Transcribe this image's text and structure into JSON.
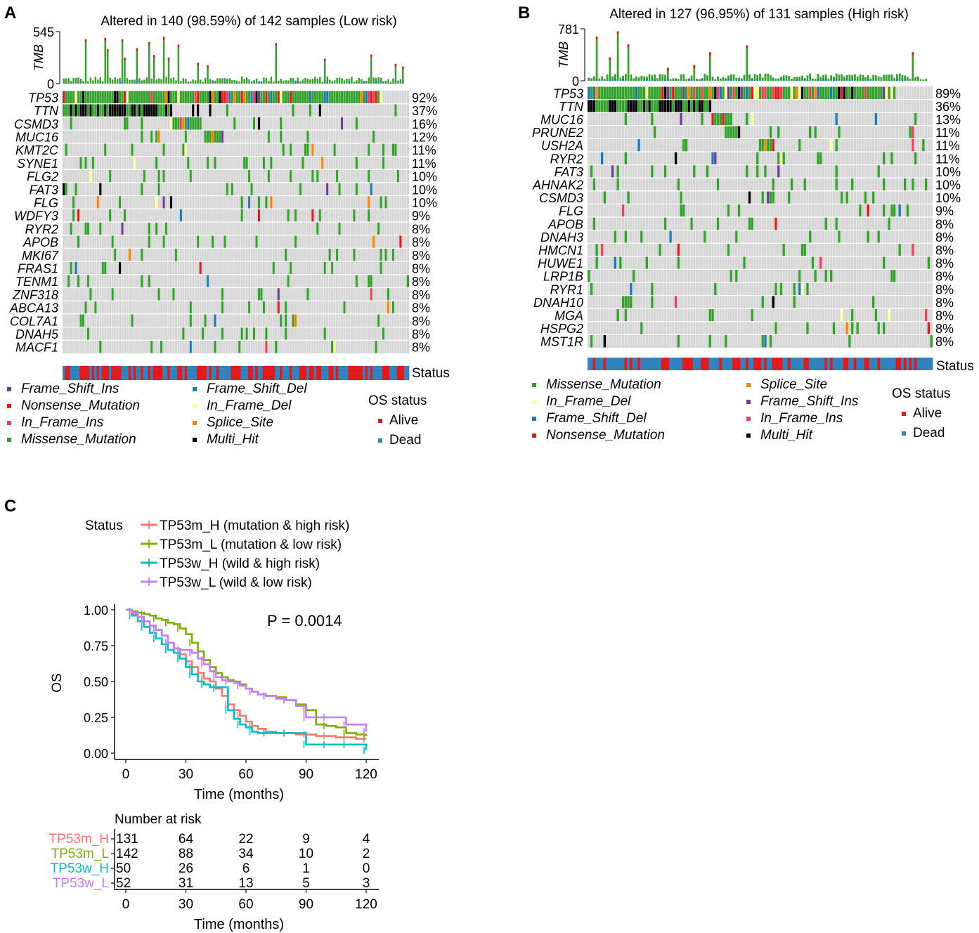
{
  "chart_data": [
    {
      "panel": "A",
      "type": "oncoplot",
      "title": "Altered in 140 (98.59%) of 142 samples (Low risk)",
      "tmb_axis_label": "TMB",
      "tmb_max": 545,
      "tmb_min": 0,
      "n_samples": 142,
      "genes": [
        "TP53",
        "TTN",
        "CSMD3",
        "MUC16",
        "KMT2C",
        "SYNE1",
        "FLG2",
        "FAT3",
        "FLG",
        "WDFY3",
        "RYR2",
        "APOB",
        "MKI67",
        "FRAS1",
        "TENM1",
        "ZNF318",
        "ABCA13",
        "COL7A1",
        "DNAH5",
        "MACF1"
      ],
      "percentages": [
        "92%",
        "37%",
        "16%",
        "12%",
        "11%",
        "11%",
        "10%",
        "10%",
        "10%",
        "9%",
        "8%",
        "8%",
        "8%",
        "8%",
        "8%",
        "8%",
        "8%",
        "8%",
        "8%",
        "8%"
      ],
      "status_label": "Status",
      "legend": {
        "variants": [
          {
            "label": "Frame_Shift_Ins",
            "color": "#6a3d9a"
          },
          {
            "label": "Nonsense_Mutation",
            "color": "#e31a1c"
          },
          {
            "label": "In_Frame_Ins",
            "color": "#e9435a"
          },
          {
            "label": "Missense_Mutation",
            "color": "#33a02c"
          },
          {
            "label": "Frame_Shift_Del",
            "color": "#1f78b4"
          },
          {
            "label": "In_Frame_Del",
            "color": "#ffff99"
          },
          {
            "label": "Splice_Site",
            "color": "#ff7f00"
          },
          {
            "label": "Multi_Hit",
            "color": "#000000"
          }
        ],
        "os_title": "OS status",
        "os": [
          {
            "label": "Alive",
            "color": "#e31a1c"
          },
          {
            "label": "Dead",
            "color": "#3182bd"
          }
        ]
      }
    },
    {
      "panel": "B",
      "type": "oncoplot",
      "title": "Altered in 127 (96.95%) of 131 samples (High risk)",
      "tmb_axis_label": "TMB",
      "tmb_max": 781,
      "tmb_min": 0,
      "n_samples": 131,
      "genes": [
        "TP53",
        "TTN",
        "MUC16",
        "PRUNE2",
        "USH2A",
        "RYR2",
        "FAT3",
        "AHNAK2",
        "CSMD3",
        "FLG",
        "APOB",
        "DNAH3",
        "HMCN1",
        "HUWE1",
        "LRP1B",
        "RYR1",
        "DNAH10",
        "MGA",
        "HSPG2",
        "MST1R"
      ],
      "percentages": [
        "89%",
        "36%",
        "13%",
        "11%",
        "11%",
        "11%",
        "10%",
        "10%",
        "10%",
        "9%",
        "8%",
        "8%",
        "8%",
        "8%",
        "8%",
        "8%",
        "8%",
        "8%",
        "8%",
        "8%"
      ],
      "status_label": "Status",
      "legend": {
        "variants": [
          {
            "label": "Missense_Mutation",
            "color": "#33a02c"
          },
          {
            "label": "In_Frame_Del",
            "color": "#ffff99"
          },
          {
            "label": "Frame_Shift_Del",
            "color": "#1f78b4"
          },
          {
            "label": "Nonsense_Mutation",
            "color": "#e31a1c"
          },
          {
            "label": "Splice_Site",
            "color": "#ff7f00"
          },
          {
            "label": "Frame_Shift_Ins",
            "color": "#6a3d9a"
          },
          {
            "label": "In_Frame_Ins",
            "color": "#e9435a"
          },
          {
            "label": "Multi_Hit",
            "color": "#000000"
          }
        ],
        "os_title": "OS status",
        "os": [
          {
            "label": "Alive",
            "color": "#e31a1c"
          },
          {
            "label": "Dead",
            "color": "#3182bd"
          }
        ]
      }
    },
    {
      "panel": "C",
      "type": "line",
      "subtype": "kaplan-meier",
      "legend_title": "Status",
      "xlabel": "Time (months)",
      "ylabel": "OS",
      "xlim": [
        0,
        120
      ],
      "ylim": [
        0,
        1
      ],
      "xticks": [
        0,
        30,
        60,
        90,
        120
      ],
      "yticks": [
        "0.00",
        "0.25",
        "0.50",
        "0.75",
        "1.00"
      ],
      "annotation": "P = 0.0014",
      "series": [
        {
          "name": "TP53m_H (mutation & high risk)",
          "short": "TP53m_H",
          "color": "#f8766d",
          "x": [
            0,
            3,
            6,
            9,
            12,
            15,
            18,
            21,
            24,
            27,
            30,
            33,
            36,
            39,
            42,
            45,
            48,
            51,
            54,
            57,
            60,
            63,
            66,
            70,
            75,
            80,
            85,
            90,
            95,
            100,
            105,
            110,
            115,
            120
          ],
          "y": [
            1.0,
            0.97,
            0.95,
            0.92,
            0.89,
            0.86,
            0.82,
            0.77,
            0.73,
            0.69,
            0.64,
            0.6,
            0.56,
            0.52,
            0.5,
            0.45,
            0.4,
            0.34,
            0.3,
            0.26,
            0.22,
            0.19,
            0.17,
            0.15,
            0.14,
            0.14,
            0.13,
            0.13,
            0.12,
            0.12,
            0.11,
            0.11,
            0.1,
            0.1
          ]
        },
        {
          "name": "TP53m_L (mutation & low risk)",
          "short": "TP53m_L",
          "color": "#7cae00",
          "x": [
            0,
            3,
            6,
            9,
            12,
            15,
            18,
            21,
            24,
            27,
            30,
            33,
            36,
            39,
            42,
            45,
            48,
            51,
            54,
            57,
            60,
            63,
            66,
            70,
            75,
            80,
            85,
            90,
            95,
            100,
            105,
            110,
            115,
            120
          ],
          "y": [
            1.0,
            0.99,
            0.98,
            0.97,
            0.96,
            0.94,
            0.93,
            0.91,
            0.9,
            0.87,
            0.83,
            0.77,
            0.71,
            0.65,
            0.6,
            0.56,
            0.53,
            0.51,
            0.5,
            0.48,
            0.45,
            0.43,
            0.41,
            0.4,
            0.39,
            0.37,
            0.34,
            0.3,
            0.2,
            0.19,
            0.18,
            0.14,
            0.13,
            0.12
          ]
        },
        {
          "name": "TP53w_H (wild & high risk)",
          "short": "TP53w_H",
          "color": "#00bfc4",
          "x": [
            0,
            3,
            6,
            9,
            12,
            15,
            18,
            21,
            24,
            27,
            30,
            33,
            36,
            39,
            42,
            45,
            48,
            51,
            54,
            57,
            60,
            63,
            66,
            70,
            75,
            80,
            85,
            90,
            95,
            100,
            105,
            110,
            115,
            120
          ],
          "y": [
            1.0,
            0.96,
            0.92,
            0.88,
            0.84,
            0.8,
            0.76,
            0.72,
            0.7,
            0.66,
            0.6,
            0.55,
            0.5,
            0.48,
            0.46,
            0.46,
            0.46,
            0.3,
            0.24,
            0.2,
            0.18,
            0.15,
            0.14,
            0.14,
            0.14,
            0.14,
            0.14,
            0.06,
            0.06,
            0.06,
            0.06,
            0.06,
            0.06,
            0.02
          ]
        },
        {
          "name": "TP53w_L (wild & low risk)",
          "short": "TP53w_L",
          "color": "#c77cff",
          "x": [
            0,
            3,
            6,
            9,
            12,
            15,
            18,
            21,
            24,
            27,
            30,
            33,
            36,
            39,
            42,
            45,
            48,
            51,
            54,
            57,
            60,
            63,
            66,
            70,
            75,
            80,
            85,
            90,
            95,
            100,
            105,
            110,
            115,
            120
          ],
          "y": [
            1.0,
            0.98,
            0.95,
            0.92,
            0.89,
            0.86,
            0.82,
            0.77,
            0.73,
            0.72,
            0.72,
            0.7,
            0.66,
            0.62,
            0.57,
            0.53,
            0.51,
            0.5,
            0.49,
            0.47,
            0.45,
            0.43,
            0.41,
            0.4,
            0.38,
            0.37,
            0.33,
            0.25,
            0.25,
            0.25,
            0.25,
            0.2,
            0.2,
            0.15
          ]
        }
      ],
      "risk_table": {
        "title": "Number at risk",
        "times": [
          0,
          30,
          60,
          90,
          120
        ],
        "rows": [
          {
            "label": "TP53m_H",
            "color": "#f8766d",
            "values": [
              131,
              64,
              22,
              9,
              4
            ]
          },
          {
            "label": "TP53m_L",
            "color": "#7cae00",
            "values": [
              142,
              88,
              34,
              10,
              2
            ]
          },
          {
            "label": "TP53w_H",
            "color": "#00bfc4",
            "values": [
              50,
              26,
              6,
              1,
              0
            ]
          },
          {
            "label": "TP53w_L",
            "color": "#c77cff",
            "values": [
              52,
              31,
              13,
              5,
              3
            ]
          }
        ],
        "xlabel": "Time (months)"
      }
    }
  ],
  "panels": {
    "a": "A",
    "b": "B",
    "c": "C"
  }
}
